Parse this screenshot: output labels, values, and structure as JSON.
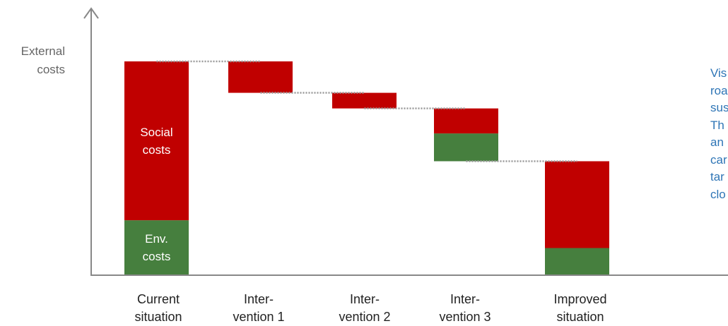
{
  "chart_data": {
    "type": "bar",
    "subtype": "waterfall",
    "ylabel_lines": [
      "External",
      "costs"
    ],
    "categories": [
      {
        "lines": [
          "Current",
          "situation"
        ]
      },
      {
        "lines": [
          "Inter-",
          "vention 1"
        ]
      },
      {
        "lines": [
          "Inter-",
          "vention 2"
        ]
      },
      {
        "lines": [
          "Inter-",
          "vention 3"
        ]
      },
      {
        "lines": [
          "Improved",
          "situation"
        ]
      }
    ],
    "ylim": [
      0,
      100
    ],
    "bars": [
      {
        "kind": "total",
        "segments": [
          {
            "series": "environmental",
            "from": 0,
            "to": 25.7,
            "label_lines": [
              "Env.",
              "costs"
            ]
          },
          {
            "series": "social",
            "from": 25.7,
            "to": 100,
            "label_lines": [
              "Social",
              "costs"
            ]
          }
        ]
      },
      {
        "kind": "step",
        "segments": [
          {
            "series": "social",
            "from": 85.3,
            "to": 100
          }
        ]
      },
      {
        "kind": "step",
        "segments": [
          {
            "series": "social",
            "from": 78.0,
            "to": 85.3
          }
        ]
      },
      {
        "kind": "step",
        "segments": [
          {
            "series": "environmental",
            "from": 53.3,
            "to": 66.3
          },
          {
            "series": "social",
            "from": 66.3,
            "to": 78.0
          }
        ]
      },
      {
        "kind": "total",
        "segments": [
          {
            "series": "environmental",
            "from": 0,
            "to": 12.7
          },
          {
            "series": "social",
            "from": 12.7,
            "to": 53.3
          }
        ]
      }
    ],
    "connectors": [
      {
        "from_bar": 0,
        "to_bar": 1,
        "value": 100
      },
      {
        "from_bar": 1,
        "to_bar": 2,
        "value": 85.3
      },
      {
        "from_bar": 2,
        "to_bar": 3,
        "value": 78.0
      },
      {
        "from_bar": 3,
        "to_bar": 4,
        "value": 53.3
      }
    ],
    "colors": {
      "social": "#c00000",
      "environmental": "#467f3e",
      "axis": "#888888",
      "connector": "#999999"
    },
    "grid": false,
    "legend": "none"
  },
  "side_text": {
    "lines": [
      "Vis",
      "roa",
      "sus",
      "Th",
      "an",
      "car",
      "tar",
      "clo"
    ],
    "color": "#2e75b6"
  }
}
